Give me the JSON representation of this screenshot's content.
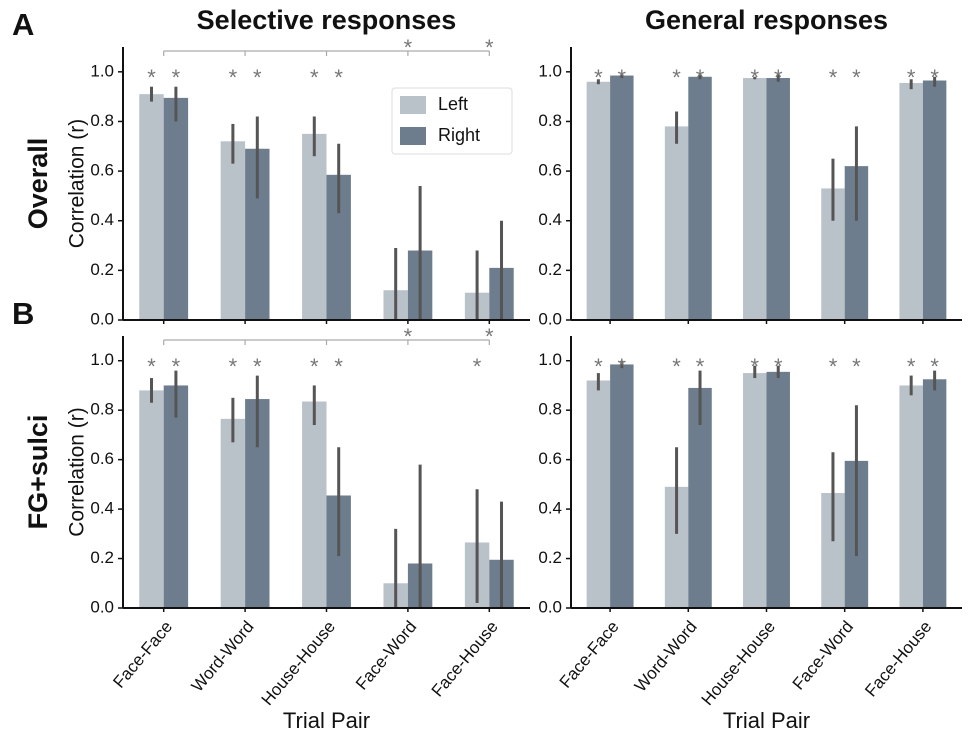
{
  "chart_data": [
    {
      "type": "bar",
      "panel_label": "A",
      "row_label": "Overall",
      "title": "Selective responses",
      "ylabel": "Correlation (r)",
      "ylim": [
        0,
        1.1
      ],
      "yticks": [
        {
          "value": 0,
          "label": "0.0"
        },
        0.2,
        0.4,
        0.6,
        0.8,
        {
          "value": 1,
          "label": "1.0"
        }
      ],
      "marker": "*",
      "legend": "upper right",
      "comparison_significant": [
        false,
        false,
        false,
        true,
        true
      ],
      "series": [
        {
          "name": "Left",
          "color": "#b9c1c9",
          "values": [
            0.91,
            0.72,
            0.75,
            0.12,
            0.11
          ],
          "ci": [
            [
              0.88,
              0.94
            ],
            [
              0.63,
              0.79
            ],
            [
              0.66,
              0.82
            ],
            [
              0,
              0.29
            ],
            [
              0,
              0.28
            ]
          ],
          "significant": [
            true,
            true,
            true,
            false,
            false
          ]
        },
        {
          "name": "Right",
          "color": "#6e7d8e",
          "values": [
            0.895,
            0.69,
            0.585,
            0.28,
            0.21
          ],
          "ci": [
            [
              0.8,
              0.94
            ],
            [
              0.49,
              0.82
            ],
            [
              0.43,
              0.71
            ],
            [
              0,
              0.54
            ],
            [
              0,
              0.4
            ]
          ],
          "significant": [
            true,
            true,
            true,
            false,
            false
          ]
        }
      ]
    },
    {
      "type": "bar",
      "title": "General responses",
      "ylim": [
        0,
        1.1
      ],
      "yticks": [
        {
          "value": 0,
          "label": "0.0"
        },
        0.2,
        0.4,
        0.6,
        0.8,
        {
          "value": 1,
          "label": "1.0"
        }
      ],
      "marker": "*",
      "series": [
        {
          "color": "#b9c1c9",
          "values": [
            0.96,
            0.78,
            0.975,
            0.53,
            0.955
          ],
          "ci": [
            [
              0.95,
              0.97
            ],
            [
              0.71,
              0.84
            ],
            [
              0.97,
              0.98
            ],
            [
              0.4,
              0.65
            ],
            [
              0.93,
              0.97
            ]
          ],
          "significant": [
            true,
            true,
            true,
            true,
            true
          ]
        },
        {
          "color": "#6e7d8e",
          "values": [
            0.985,
            0.98,
            0.975,
            0.62,
            0.965
          ],
          "ci": [
            [
              0.975,
              0.99
            ],
            [
              0.97,
              0.99
            ],
            [
              0.96,
              0.99
            ],
            [
              0.4,
              0.78
            ],
            [
              0.94,
              0.98
            ]
          ],
          "significant": [
            true,
            true,
            true,
            true,
            true
          ]
        }
      ]
    },
    {
      "type": "bar",
      "panel_label": "B",
      "row_label": "FG+sulci",
      "ylabel": "Correlation (r)",
      "xlabel": "Trial Pair",
      "categories": [
        "Face-Face",
        "Word-Word",
        "House-House",
        "Face-Word",
        "Face-House"
      ],
      "ylim": [
        0,
        1.1
      ],
      "yticks": [
        {
          "value": 0,
          "label": "0.0"
        },
        0.2,
        0.4,
        0.6,
        0.8,
        {
          "value": 1,
          "label": "1.0"
        }
      ],
      "marker": "*",
      "comparison_significant": [
        false,
        false,
        false,
        true,
        true
      ],
      "series": [
        {
          "color": "#b9c1c9",
          "values": [
            0.88,
            0.765,
            0.835,
            0.1,
            0.265
          ],
          "ci": [
            [
              0.83,
              0.93
            ],
            [
              0.67,
              0.85
            ],
            [
              0.74,
              0.9
            ],
            [
              0,
              0.32
            ],
            [
              0.02,
              0.48
            ]
          ],
          "significant": [
            true,
            true,
            true,
            false,
            true
          ]
        },
        {
          "color": "#6e7d8e",
          "values": [
            0.9,
            0.845,
            0.455,
            0.18,
            0.195
          ],
          "ci": [
            [
              0.77,
              0.96
            ],
            [
              0.65,
              0.94
            ],
            [
              0.21,
              0.65
            ],
            [
              0,
              0.58
            ],
            [
              0,
              0.43
            ]
          ],
          "significant": [
            true,
            true,
            true,
            false,
            false
          ]
        }
      ]
    },
    {
      "type": "bar",
      "xlabel": "Trial Pair",
      "categories": [
        "Face-Face",
        "Word-Word",
        "House-House",
        "Face-Word",
        "Face-House"
      ],
      "ylim": [
        0,
        1.1
      ],
      "yticks": [
        {
          "value": 0,
          "label": "0.0"
        },
        0.2,
        0.4,
        0.6,
        0.8,
        {
          "value": 1,
          "label": "1.0"
        }
      ],
      "marker": "*",
      "series": [
        {
          "color": "#b9c1c9",
          "values": [
            0.92,
            0.49,
            0.95,
            0.465,
            0.9
          ],
          "ci": [
            [
              0.88,
              0.95
            ],
            [
              0.3,
              0.65
            ],
            [
              0.93,
              0.98
            ],
            [
              0.27,
              0.63
            ],
            [
              0.86,
              0.94
            ]
          ],
          "significant": [
            true,
            true,
            true,
            true,
            true
          ]
        },
        {
          "color": "#6e7d8e",
          "values": [
            0.985,
            0.89,
            0.955,
            0.595,
            0.925
          ],
          "ci": [
            [
              0.97,
              1
            ],
            [
              0.74,
              0.96
            ],
            [
              0.93,
              0.98
            ],
            [
              0.21,
              0.82
            ],
            [
              0.88,
              0.96
            ]
          ],
          "significant": [
            true,
            true,
            true,
            true,
            true
          ]
        }
      ]
    }
  ]
}
